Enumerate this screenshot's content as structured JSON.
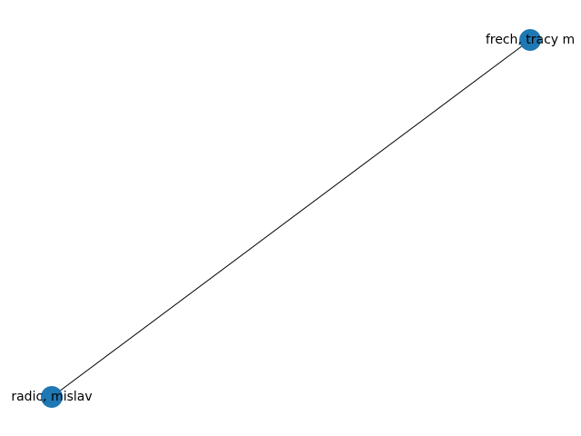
{
  "graph": {
    "node_color": "#1f77b4",
    "edge_color": "#000000",
    "nodes": [
      {
        "id": "frech",
        "label": "frech, tracy m"
      },
      {
        "id": "radic",
        "label": "radic, mislav"
      }
    ],
    "edges": [
      {
        "source": "frech",
        "target": "radic"
      }
    ]
  }
}
